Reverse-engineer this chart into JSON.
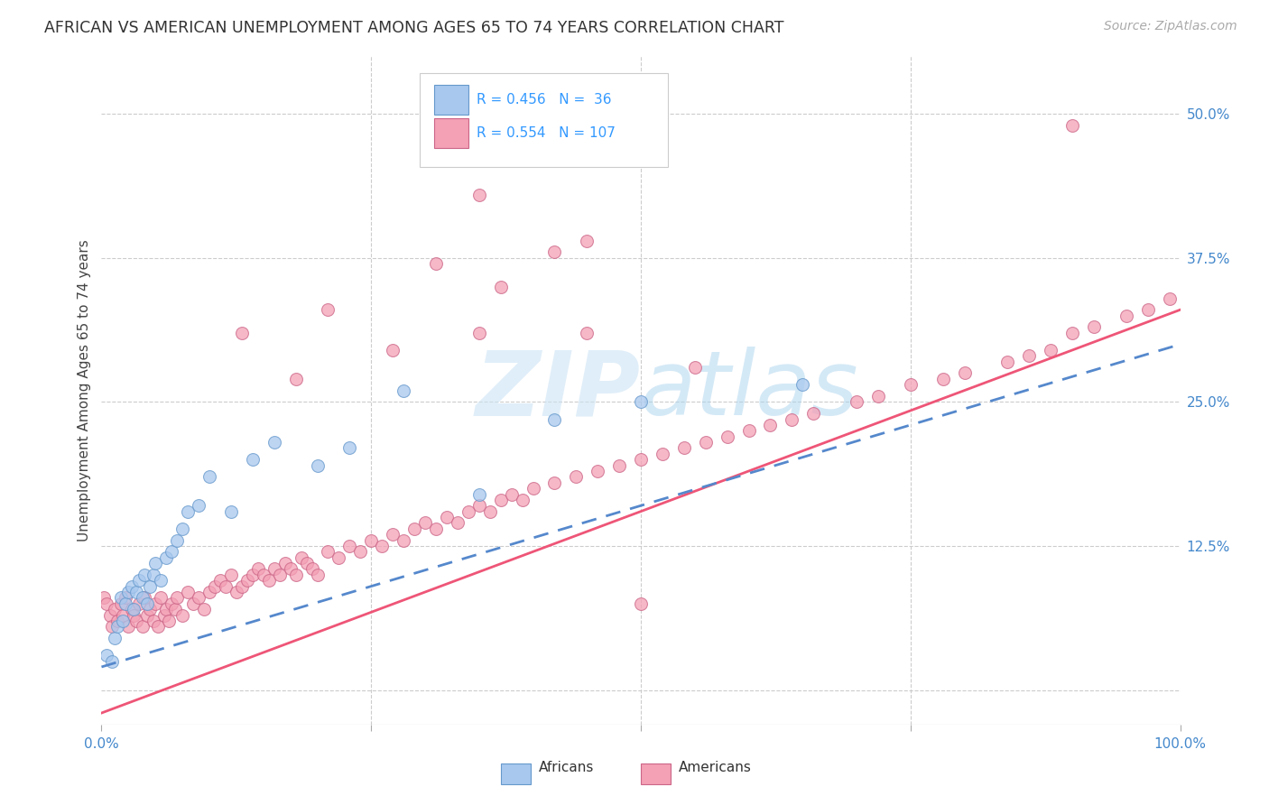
{
  "title": "AFRICAN VS AMERICAN UNEMPLOYMENT AMONG AGES 65 TO 74 YEARS CORRELATION CHART",
  "source": "Source: ZipAtlas.com",
  "ylabel": "Unemployment Among Ages 65 to 74 years",
  "xlim": [
    0.0,
    1.0
  ],
  "ylim": [
    -0.03,
    0.55
  ],
  "african_color": "#a8c8ee",
  "american_color": "#f4a0b5",
  "african_edge_color": "#6699cc",
  "american_edge_color": "#cc6688",
  "african_line_color": "#5588cc",
  "american_line_color": "#ee5577",
  "watermark_color": "#cce4f5",
  "legend_R_african": "R = 0.456",
  "legend_N_african": "N =  36",
  "legend_R_american": "R = 0.554",
  "legend_N_american": "N = 107",
  "african_x": [
    0.005,
    0.01,
    0.012,
    0.015,
    0.018,
    0.02,
    0.022,
    0.025,
    0.028,
    0.03,
    0.032,
    0.035,
    0.038,
    0.04,
    0.042,
    0.045,
    0.048,
    0.05,
    0.055,
    0.06,
    0.065,
    0.07,
    0.075,
    0.08,
    0.09,
    0.1,
    0.12,
    0.14,
    0.16,
    0.2,
    0.23,
    0.28,
    0.35,
    0.42,
    0.5,
    0.65
  ],
  "african_y": [
    0.03,
    0.025,
    0.045,
    0.055,
    0.08,
    0.06,
    0.075,
    0.085,
    0.09,
    0.07,
    0.085,
    0.095,
    0.08,
    0.1,
    0.075,
    0.09,
    0.1,
    0.11,
    0.095,
    0.115,
    0.12,
    0.13,
    0.14,
    0.155,
    0.16,
    0.185,
    0.155,
    0.2,
    0.215,
    0.195,
    0.21,
    0.26,
    0.17,
    0.235,
    0.25,
    0.265
  ],
  "american_x": [
    0.002,
    0.005,
    0.008,
    0.01,
    0.012,
    0.015,
    0.018,
    0.02,
    0.022,
    0.025,
    0.028,
    0.03,
    0.032,
    0.035,
    0.038,
    0.04,
    0.042,
    0.045,
    0.048,
    0.05,
    0.052,
    0.055,
    0.058,
    0.06,
    0.062,
    0.065,
    0.068,
    0.07,
    0.075,
    0.08,
    0.085,
    0.09,
    0.095,
    0.1,
    0.105,
    0.11,
    0.115,
    0.12,
    0.125,
    0.13,
    0.135,
    0.14,
    0.145,
    0.15,
    0.155,
    0.16,
    0.165,
    0.17,
    0.175,
    0.18,
    0.185,
    0.19,
    0.195,
    0.2,
    0.21,
    0.22,
    0.23,
    0.24,
    0.25,
    0.26,
    0.27,
    0.28,
    0.29,
    0.3,
    0.31,
    0.32,
    0.33,
    0.34,
    0.35,
    0.36,
    0.37,
    0.38,
    0.39,
    0.4,
    0.42,
    0.44,
    0.46,
    0.48,
    0.5,
    0.52,
    0.54,
    0.56,
    0.58,
    0.6,
    0.62,
    0.64,
    0.66,
    0.7,
    0.72,
    0.75,
    0.78,
    0.8,
    0.84,
    0.86,
    0.88,
    0.9,
    0.92,
    0.95,
    0.97,
    0.99,
    0.13,
    0.18,
    0.21,
    0.27,
    0.31,
    0.37,
    0.45
  ],
  "american_y": [
    0.08,
    0.075,
    0.065,
    0.055,
    0.07,
    0.06,
    0.075,
    0.065,
    0.08,
    0.055,
    0.07,
    0.065,
    0.06,
    0.075,
    0.055,
    0.08,
    0.065,
    0.07,
    0.06,
    0.075,
    0.055,
    0.08,
    0.065,
    0.07,
    0.06,
    0.075,
    0.07,
    0.08,
    0.065,
    0.085,
    0.075,
    0.08,
    0.07,
    0.085,
    0.09,
    0.095,
    0.09,
    0.1,
    0.085,
    0.09,
    0.095,
    0.1,
    0.105,
    0.1,
    0.095,
    0.105,
    0.1,
    0.11,
    0.105,
    0.1,
    0.115,
    0.11,
    0.105,
    0.1,
    0.12,
    0.115,
    0.125,
    0.12,
    0.13,
    0.125,
    0.135,
    0.13,
    0.14,
    0.145,
    0.14,
    0.15,
    0.145,
    0.155,
    0.16,
    0.155,
    0.165,
    0.17,
    0.165,
    0.175,
    0.18,
    0.185,
    0.19,
    0.195,
    0.2,
    0.205,
    0.21,
    0.215,
    0.22,
    0.225,
    0.23,
    0.235,
    0.24,
    0.25,
    0.255,
    0.265,
    0.27,
    0.275,
    0.285,
    0.29,
    0.295,
    0.31,
    0.315,
    0.325,
    0.33,
    0.34,
    0.31,
    0.27,
    0.33,
    0.295,
    0.37,
    0.35,
    0.39
  ],
  "american_outliers_x": [
    0.35,
    0.42,
    0.45,
    0.5,
    0.55,
    0.35,
    0.9
  ],
  "american_outliers_y": [
    0.43,
    0.38,
    0.31,
    0.075,
    0.28,
    0.31,
    0.49
  ]
}
